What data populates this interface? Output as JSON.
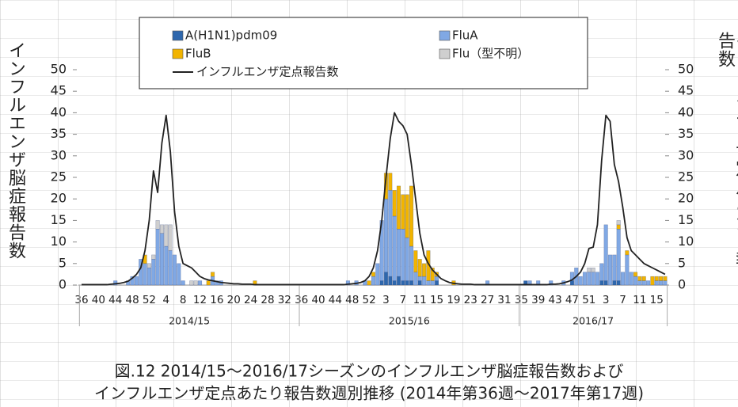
{
  "chart_data": {
    "type": "bar",
    "title": "図.12 2014/15～2016/17シーズンのインフルエンザ脳症報告数および",
    "subtitle": "インフルエンザ定点あたり報告数週別推移 (2014年第36週～2017年第17週)",
    "y_label": "インフルエンザ脳症報告数",
    "y2_label": "インフルエンザ定点あたり報告数",
    "season_labels": [
      "2014/15",
      "2015/16",
      "2016/17"
    ],
    "stacked": true,
    "categories": [
      "36",
      null,
      null,
      null,
      "40",
      null,
      null,
      null,
      "44",
      null,
      null,
      null,
      "48",
      null,
      null,
      null,
      "52",
      null,
      null,
      null,
      "4",
      null,
      null,
      null,
      "8",
      null,
      null,
      null,
      "12",
      null,
      null,
      null,
      "16",
      null,
      null,
      null,
      "20",
      null,
      null,
      null,
      "24",
      null,
      null,
      null,
      "28",
      null,
      null,
      null,
      "32",
      null,
      null,
      null,
      "36",
      null,
      null,
      null,
      "40",
      null,
      null,
      null,
      "44",
      null,
      null,
      null,
      "48",
      null,
      null,
      null,
      "52",
      null,
      null,
      null,
      "3",
      null,
      null,
      null,
      "7",
      null,
      null,
      null,
      "11",
      null,
      null,
      null,
      "15",
      null,
      null,
      null,
      "19",
      null,
      null,
      null,
      "23",
      null,
      null,
      null,
      "27",
      null,
      null,
      null,
      "31",
      null,
      null,
      null,
      "35",
      null,
      null,
      null,
      "39",
      null,
      null,
      null,
      "43",
      null,
      null,
      null,
      "47",
      null,
      null,
      null,
      "51",
      null,
      null,
      null,
      "3",
      null,
      null,
      null,
      "7",
      null,
      null,
      null,
      "11",
      null,
      null,
      null,
      "15",
      null,
      null
    ],
    "ylim": [
      0,
      50
    ],
    "yticks": [
      0,
      5,
      10,
      15,
      20,
      25,
      30,
      35,
      40,
      45,
      50
    ],
    "y2lim": [
      0,
      50
    ],
    "y2ticks": [
      0,
      5,
      10,
      15,
      20,
      25,
      30,
      35,
      40,
      45,
      50
    ],
    "grid": false,
    "series": [
      {
        "name": "A(H1N1)pdm09",
        "color": "#2e67ad",
        "values": [
          0,
          0,
          0,
          0,
          0,
          0,
          0,
          0,
          0,
          0,
          0,
          0,
          0,
          0,
          0,
          0,
          0,
          0,
          0,
          0,
          0,
          0,
          0,
          0,
          0,
          0,
          0,
          0,
          0,
          0,
          0,
          0,
          0,
          0,
          0,
          0,
          0,
          0,
          0,
          0,
          0,
          0,
          0,
          0,
          0,
          0,
          0,
          0,
          0,
          0,
          0,
          0,
          0,
          0,
          0,
          0,
          0,
          0,
          0,
          0,
          0,
          0,
          0,
          0,
          0,
          0,
          0,
          0,
          0,
          0,
          0,
          1,
          3,
          2,
          1,
          2,
          1,
          1,
          1,
          0,
          1,
          0,
          0,
          0,
          1,
          0,
          0,
          0,
          0,
          0,
          0,
          0,
          0,
          0,
          0,
          0,
          0,
          0,
          0,
          0,
          0,
          0,
          0,
          0,
          0,
          1,
          0,
          0,
          0,
          0,
          0,
          0,
          0,
          0,
          0,
          0,
          1,
          0,
          0,
          0,
          0,
          0,
          0,
          1,
          1,
          0,
          1,
          1,
          0,
          0,
          0,
          0,
          0,
          0,
          0,
          0,
          0,
          0,
          0
        ]
      },
      {
        "name": "FluA",
        "color": "#80a8e4",
        "values": [
          0,
          0,
          0,
          0,
          0,
          0,
          0,
          0,
          1,
          0,
          0,
          1,
          2,
          2,
          6,
          5,
          4,
          6,
          13,
          12,
          9,
          8,
          7,
          5,
          1,
          0,
          0,
          0,
          1,
          0,
          0,
          2,
          1,
          1,
          0,
          0,
          0,
          0,
          0,
          0,
          0,
          0,
          0,
          0,
          0,
          0,
          0,
          0,
          0,
          0,
          0,
          0,
          0,
          0,
          0,
          0,
          0,
          0,
          0,
          0,
          0,
          0,
          0,
          1,
          0,
          1,
          0,
          1,
          0,
          2,
          5,
          14,
          17,
          20,
          15,
          11,
          12,
          10,
          8,
          3,
          1,
          2,
          1,
          1,
          1,
          0,
          0,
          0,
          0,
          0,
          0,
          0,
          0,
          0,
          0,
          0,
          1,
          0,
          0,
          0,
          0,
          0,
          0,
          0,
          0,
          0,
          1,
          0,
          1,
          0,
          0,
          1,
          0,
          0,
          1,
          0,
          2,
          4,
          2,
          3,
          3,
          3,
          3,
          4,
          13,
          7,
          6,
          12,
          3,
          7,
          3,
          2,
          1,
          1,
          1,
          0,
          1,
          1,
          1
        ]
      },
      {
        "name": "FluB",
        "color": "#f2b400",
        "values": [
          0,
          0,
          0,
          0,
          0,
          0,
          0,
          0,
          0,
          0,
          0,
          0,
          0,
          0,
          0,
          2,
          0,
          0,
          0,
          0,
          0,
          0,
          0,
          0,
          0,
          0,
          0,
          0,
          0,
          0,
          1,
          1,
          0,
          0,
          0,
          0,
          0,
          0,
          0,
          0,
          0,
          1,
          0,
          0,
          0,
          0,
          0,
          0,
          0,
          0,
          0,
          0,
          0,
          0,
          0,
          0,
          0,
          0,
          0,
          0,
          0,
          0,
          0,
          0,
          0,
          0,
          0,
          0,
          1,
          1,
          0,
          0,
          6,
          4,
          6,
          10,
          8,
          10,
          14,
          5,
          4,
          3,
          7,
          3,
          1,
          0,
          0,
          0,
          1,
          0,
          0,
          0,
          0,
          0,
          0,
          0,
          0,
          0,
          0,
          0,
          0,
          0,
          0,
          0,
          0,
          0,
          0,
          0,
          0,
          0,
          0,
          0,
          0,
          0,
          0,
          0,
          0,
          0,
          0,
          0,
          0,
          0,
          0,
          0,
          0,
          0,
          0,
          1,
          0,
          1,
          0,
          1,
          1,
          1,
          0,
          2,
          1,
          1,
          1
        ]
      },
      {
        "name": "Flu（型不明）",
        "color": "#cfcfcf",
        "values": [
          0,
          0,
          0,
          0,
          0,
          0,
          0,
          0,
          0,
          0,
          0,
          0,
          0,
          0,
          0,
          0,
          1,
          1,
          2,
          2,
          5,
          6,
          0,
          0,
          0,
          0,
          1,
          1,
          0,
          0,
          0,
          0,
          0,
          0,
          0,
          0,
          0,
          0,
          0,
          0,
          0,
          0,
          0,
          0,
          0,
          0,
          0,
          0,
          0,
          0,
          0,
          0,
          0,
          0,
          0,
          0,
          0,
          0,
          0,
          0,
          0,
          0,
          0,
          0,
          0,
          0,
          0,
          0,
          0,
          0,
          0,
          0,
          0,
          0,
          0,
          0,
          0,
          0,
          0,
          0,
          0,
          0,
          0,
          0,
          0,
          0,
          0,
          0,
          0,
          0,
          0,
          0,
          0,
          0,
          0,
          0,
          0,
          0,
          0,
          0,
          0,
          0,
          0,
          0,
          0,
          0,
          0,
          0,
          0,
          0,
          0,
          0,
          0,
          0,
          0,
          0,
          0,
          0,
          0,
          0,
          1,
          1,
          0,
          0,
          0,
          0,
          0,
          1,
          0,
          0,
          0,
          0,
          0,
          0,
          0,
          0,
          0,
          0,
          0
        ]
      },
      {
        "name": "インフルエンザ定点報告数",
        "type": "line",
        "axis": "y2",
        "color": "#222222",
        "values": [
          0.1,
          0.1,
          0.1,
          0.1,
          0.1,
          0.1,
          0.1,
          0.2,
          0.3,
          0.4,
          0.6,
          0.9,
          1.6,
          2.5,
          4,
          8,
          15,
          26.5,
          21.5,
          33,
          39.4,
          31,
          17,
          9,
          5,
          4.5,
          4,
          3,
          2,
          1.5,
          1.2,
          1,
          0.8,
          0.6,
          0.5,
          0.4,
          0.3,
          0.3,
          0.2,
          0.2,
          0.2,
          0.1,
          0.1,
          0.1,
          0.1,
          0.1,
          0.1,
          0.1,
          0.1,
          0.1,
          0.1,
          0.1,
          0.1,
          0.1,
          0.1,
          0.1,
          0.1,
          0.1,
          0.1,
          0.1,
          0.1,
          0.1,
          0.1,
          0.2,
          0.3,
          0.4,
          0.6,
          1,
          2,
          4,
          8,
          15,
          25,
          34,
          40,
          38,
          37,
          35,
          28,
          20,
          12,
          7,
          5,
          3.5,
          2.5,
          1.5,
          1,
          0.6,
          0.4,
          0.3,
          0.2,
          0.2,
          0.2,
          0.1,
          0.1,
          0.1,
          0.1,
          0.1,
          0.1,
          0.1,
          0.1,
          0.1,
          0.1,
          0.1,
          0.1,
          0.1,
          0.1,
          0.1,
          0.1,
          0.1,
          0.1,
          0.2,
          0.2,
          0.3,
          0.5,
          0.8,
          1.2,
          2,
          3,
          5,
          8.5,
          8.8,
          14,
          29,
          39.4,
          38,
          28,
          24,
          18,
          11,
          8,
          7,
          6,
          5,
          4.5,
          4,
          3.5,
          3,
          2.5
        ]
      }
    ]
  }
}
